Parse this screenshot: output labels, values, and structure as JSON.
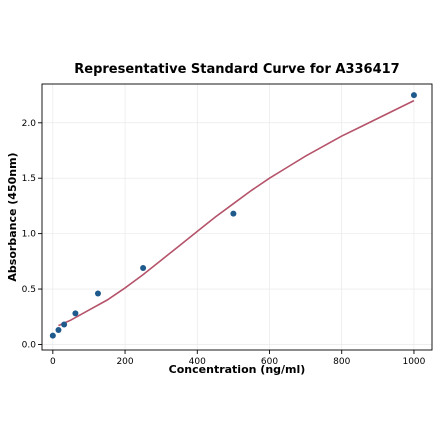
{
  "chart_data": {
    "type": "scatter",
    "title": "Representative Standard Curve for A336417",
    "xlabel": "Concentration (ng/ml)",
    "ylabel": "Absorbance (450nm)",
    "xlim": [
      -30,
      1050
    ],
    "ylim": [
      -0.05,
      2.35
    ],
    "x_ticks": [
      0,
      200,
      400,
      600,
      800,
      1000
    ],
    "y_ticks": [
      0.0,
      0.5,
      1.0,
      1.5,
      2.0
    ],
    "x_tick_labels": [
      "0",
      "200",
      "400",
      "600",
      "800",
      "1000"
    ],
    "y_tick_labels": [
      "0.0",
      "0.5",
      "1.0",
      "1.5",
      "2.0"
    ],
    "grid": true,
    "colors": {
      "points": "#1f5a8c",
      "curve": "#b5536a"
    },
    "points": [
      {
        "x": 0,
        "y": 0.08
      },
      {
        "x": 15.6,
        "y": 0.13
      },
      {
        "x": 31.25,
        "y": 0.18
      },
      {
        "x": 62.5,
        "y": 0.28
      },
      {
        "x": 125,
        "y": 0.46
      },
      {
        "x": 250,
        "y": 0.69
      },
      {
        "x": 500,
        "y": 1.18
      },
      {
        "x": 1000,
        "y": 2.25
      }
    ],
    "fit_curve": [
      {
        "x": 15.6,
        "y": 0.17
      },
      {
        "x": 50,
        "y": 0.22
      },
      {
        "x": 100,
        "y": 0.31
      },
      {
        "x": 150,
        "y": 0.4
      },
      {
        "x": 200,
        "y": 0.51
      },
      {
        "x": 250,
        "y": 0.63
      },
      {
        "x": 300,
        "y": 0.76
      },
      {
        "x": 350,
        "y": 0.89
      },
      {
        "x": 400,
        "y": 1.02
      },
      {
        "x": 450,
        "y": 1.15
      },
      {
        "x": 500,
        "y": 1.27
      },
      {
        "x": 550,
        "y": 1.39
      },
      {
        "x": 600,
        "y": 1.5
      },
      {
        "x": 650,
        "y": 1.6
      },
      {
        "x": 700,
        "y": 1.7
      },
      {
        "x": 750,
        "y": 1.79
      },
      {
        "x": 800,
        "y": 1.88
      },
      {
        "x": 850,
        "y": 1.96
      },
      {
        "x": 900,
        "y": 2.04
      },
      {
        "x": 950,
        "y": 2.12
      },
      {
        "x": 1000,
        "y": 2.2
      }
    ]
  }
}
